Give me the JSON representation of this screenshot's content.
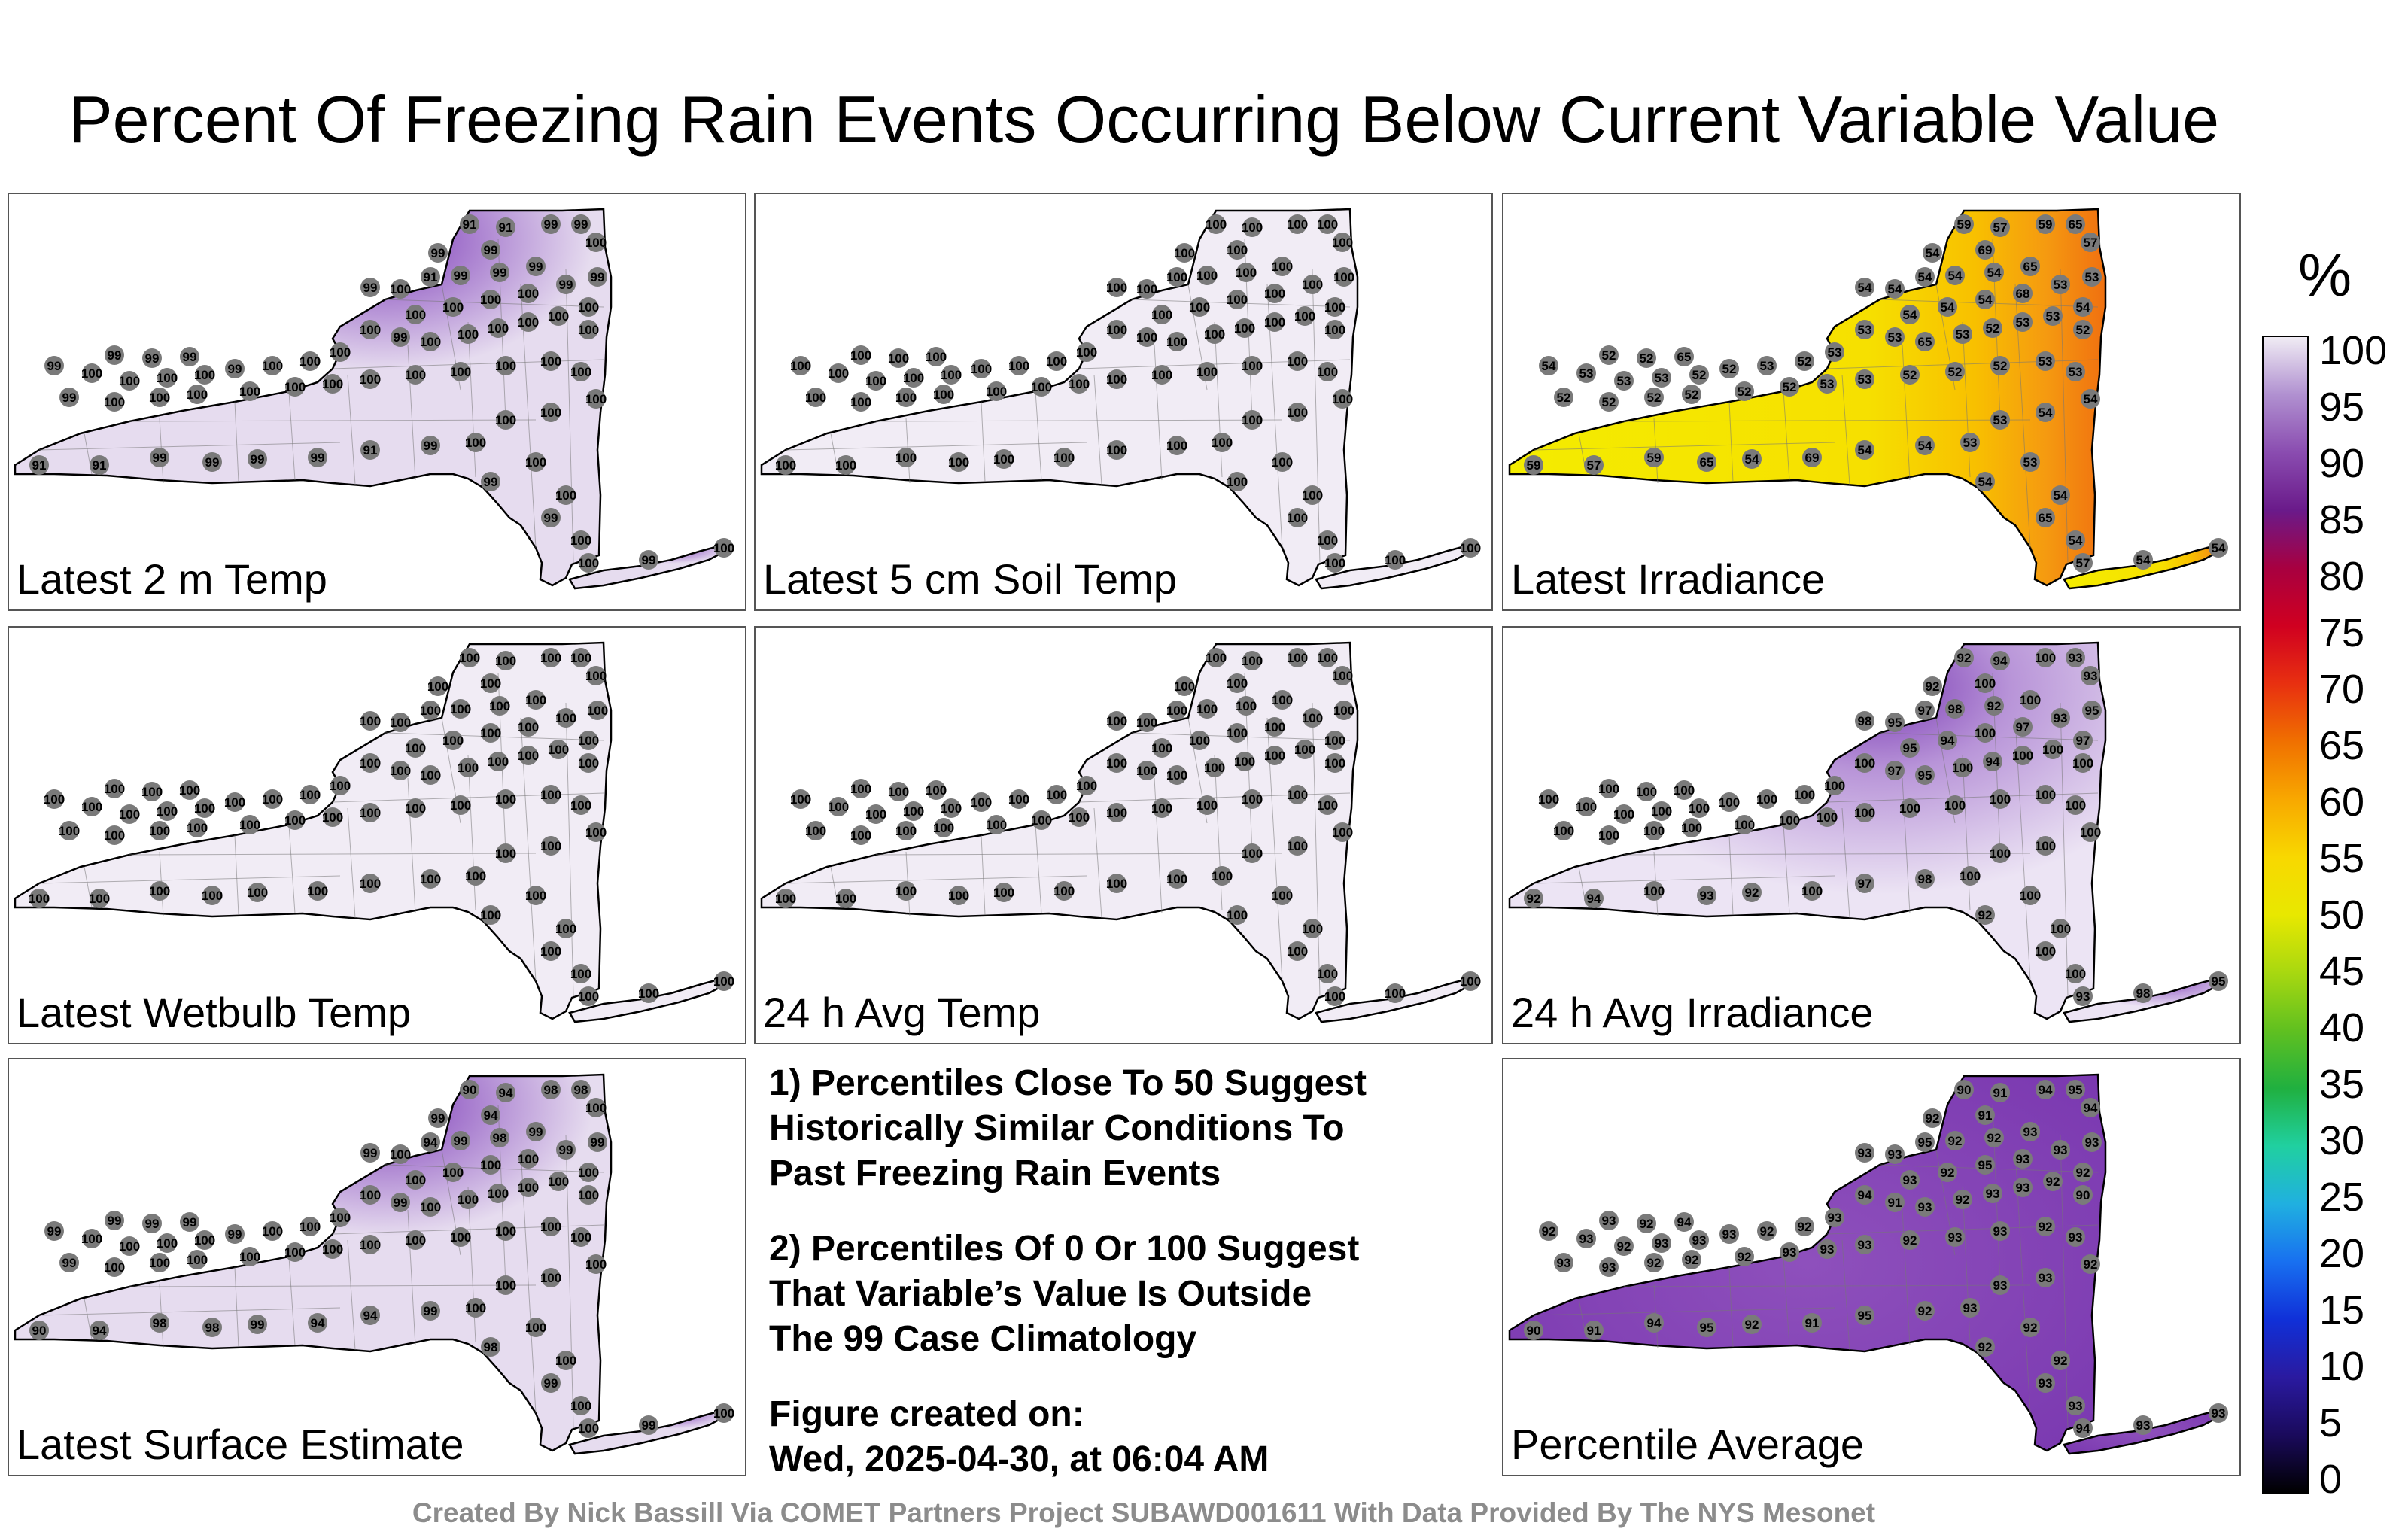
{
  "title": "Percent Of Freezing Rain Events Occurring Below Current Variable Value",
  "credit": "Created By Nick Bassill Via COMET Partners Project SUBAWD001611 With Data Provided By The NYS Mesonet",
  "colorbar": {
    "unit": "%",
    "ticks": [
      "100",
      "95",
      "90",
      "85",
      "80",
      "75",
      "70",
      "65",
      "60",
      "55",
      "50",
      "45",
      "40",
      "35",
      "30",
      "25",
      "20",
      "15",
      "10",
      "5",
      "0"
    ],
    "colors": [
      "#000000",
      "#1a0a5c",
      "#2a1aa0",
      "#1030d8",
      "#1870f0",
      "#20b0e0",
      "#20d0a0",
      "#20b040",
      "#60c020",
      "#a8d810",
      "#e8e800",
      "#f8d800",
      "#f8a800",
      "#f07000",
      "#e83010",
      "#d00020",
      "#a80040",
      "#6a1a8a",
      "#8a4cb0",
      "#b090d0",
      "#f0ecf4"
    ]
  },
  "panels": [
    {
      "label": "Latest 2 m Temp",
      "base": "#e6dcef",
      "style": "temp2m",
      "values": [
        "91",
        "91",
        "99",
        "99",
        "99",
        "99",
        "91",
        "99",
        "99",
        "99",
        "100",
        "99",
        "100",
        "100",
        "100",
        "100",
        "100",
        "99",
        "99",
        "100",
        "100",
        "99",
        "100",
        "100",
        "100",
        "100",
        "100",
        "100",
        "99",
        "99",
        "99",
        "99",
        "100",
        "100",
        "100",
        "100",
        "99",
        "100",
        "100",
        "100",
        "99",
        "100",
        "100",
        "100",
        "100",
        "100",
        "100",
        "100",
        "100",
        "100",
        "100",
        "100",
        "100",
        "100",
        "100",
        "100",
        "100",
        "100",
        "100",
        "100"
      ]
    },
    {
      "label": "Latest 5 cm Soil Temp",
      "base": "#f1ecf5",
      "style": "flat",
      "values": [
        "100",
        "100",
        "100",
        "100",
        "100",
        "100",
        "100",
        "100",
        "100",
        "100",
        "100",
        "100",
        "100",
        "100",
        "100",
        "100",
        "100",
        "100",
        "100",
        "100",
        "100",
        "100",
        "100",
        "100",
        "100",
        "100",
        "100",
        "100",
        "100",
        "100",
        "100",
        "100",
        "100",
        "100",
        "100",
        "100",
        "100",
        "100",
        "100",
        "100",
        "100",
        "100",
        "100",
        "100",
        "100",
        "100",
        "100",
        "100",
        "100",
        "100",
        "100",
        "100",
        "100",
        "100",
        "100",
        "100",
        "100",
        "100",
        "100",
        "100"
      ]
    },
    {
      "label": "Latest Irradiance",
      "base": "#f4e800",
      "style": "irr",
      "values": [
        "59",
        "57",
        "59",
        "65",
        "54",
        "69",
        "54",
        "54",
        "54",
        "65",
        "57",
        "54",
        "54",
        "54",
        "54",
        "54",
        "68",
        "53",
        "53",
        "54",
        "53",
        "53",
        "65",
        "53",
        "52",
        "53",
        "53",
        "52",
        "52",
        "52",
        "65",
        "54",
        "53",
        "53",
        "53",
        "52",
        "52",
        "53",
        "52",
        "53",
        "52",
        "52",
        "52",
        "52",
        "52",
        "52",
        "53",
        "53",
        "52",
        "52",
        "52",
        "53",
        "53",
        "54",
        "54",
        "53",
        "53",
        "53",
        "54",
        "54"
      ]
    },
    {
      "label": "Latest Wetbulb Temp",
      "base": "#f1ecf5",
      "style": "flat",
      "values": [
        "100",
        "100",
        "100",
        "100",
        "100",
        "100",
        "100",
        "100",
        "100",
        "100",
        "100",
        "100",
        "100",
        "100",
        "100",
        "100",
        "100",
        "100",
        "100",
        "100",
        "100",
        "100",
        "100",
        "100",
        "100",
        "100",
        "100",
        "100",
        "100",
        "100",
        "100",
        "100",
        "100",
        "100",
        "100",
        "100",
        "100",
        "100",
        "100",
        "100",
        "100",
        "100",
        "100",
        "100",
        "100",
        "100",
        "100",
        "100",
        "100",
        "100",
        "100",
        "100",
        "100",
        "100",
        "100",
        "100",
        "100",
        "100",
        "100",
        "100"
      ]
    },
    {
      "label": "24 h Avg Temp",
      "base": "#f1ecf5",
      "style": "flat",
      "values": [
        "100",
        "100",
        "100",
        "100",
        "100",
        "100",
        "100",
        "100",
        "100",
        "100",
        "100",
        "100",
        "100",
        "100",
        "100",
        "100",
        "100",
        "100",
        "100",
        "100",
        "100",
        "100",
        "100",
        "100",
        "100",
        "100",
        "100",
        "100",
        "100",
        "100",
        "100",
        "100",
        "100",
        "100",
        "100",
        "100",
        "100",
        "100",
        "100",
        "100",
        "100",
        "100",
        "100",
        "100",
        "100",
        "100",
        "100",
        "100",
        "100",
        "100",
        "100",
        "100",
        "100",
        "100",
        "100",
        "100",
        "100",
        "100",
        "100",
        "100"
      ]
    },
    {
      "label": "24 h Avg Irradiance",
      "base": "#e4d8ee",
      "style": "avgirr",
      "values": [
        "92",
        "94",
        "100",
        "93",
        "92",
        "100",
        "97",
        "98",
        "92",
        "100",
        "93",
        "98",
        "95",
        "95",
        "94",
        "100",
        "97",
        "93",
        "95",
        "97",
        "100",
        "97",
        "95",
        "100",
        "94",
        "100",
        "100",
        "100",
        "100",
        "100",
        "100",
        "100",
        "100",
        "100",
        "100",
        "100",
        "100",
        "100",
        "100",
        "100",
        "100",
        "100",
        "100",
        "100",
        "100",
        "100",
        "100",
        "100",
        "100",
        "100",
        "100",
        "100",
        "100",
        "100",
        "100",
        "100",
        "100",
        "100",
        "100",
        "100"
      ]
    },
    {
      "label": "Latest Surface Estimate",
      "base": "#e6dcef",
      "style": "temp2m",
      "values": [
        "90",
        "94",
        "98",
        "98",
        "99",
        "94",
        "94",
        "99",
        "98",
        "99",
        "100",
        "99",
        "100",
        "100",
        "100",
        "100",
        "100",
        "99",
        "99",
        "100",
        "100",
        "99",
        "100",
        "100",
        "100",
        "100",
        "100",
        "100",
        "99",
        "99",
        "99",
        "99",
        "100",
        "100",
        "100",
        "100",
        "99",
        "100",
        "100",
        "100",
        "99",
        "100",
        "100",
        "100",
        "100",
        "100",
        "100",
        "100",
        "100",
        "100",
        "100",
        "100",
        "100",
        "100",
        "100",
        "100",
        "100",
        "100",
        "100",
        "100"
      ]
    },
    {
      "label": "Percentile Average",
      "base": "#8a4ab8",
      "style": "avg",
      "values": [
        "90",
        "91",
        "94",
        "95",
        "92",
        "91",
        "95",
        "92",
        "92",
        "93",
        "94",
        "93",
        "93",
        "93",
        "92",
        "95",
        "93",
        "93",
        "93",
        "92",
        "94",
        "91",
        "93",
        "92",
        "93",
        "93",
        "92",
        "90",
        "93",
        "92",
        "94",
        "92",
        "93",
        "92",
        "93",
        "93",
        "93",
        "92",
        "92",
        "93",
        "93",
        "93",
        "92",
        "92",
        "92",
        "93",
        "93",
        "93",
        "92",
        "93",
        "93",
        "92",
        "93",
        "92",
        "93",
        "93",
        "93",
        "92",
        "92",
        "93"
      ]
    }
  ],
  "notes": {
    "note1": [
      "1) Percentiles Close To 50 Suggest",
      "Historically Similar Conditions To",
      "Past Freezing Rain Events"
    ],
    "note2": [
      "2) Percentiles Of 0 Or 100 Suggest",
      "That Variable’s Value Is Outside",
      "The 99 Case Climatology"
    ],
    "created": [
      "Figure created on:",
      "Wed, 2025-04-30, at 06:04 AM"
    ]
  }
}
